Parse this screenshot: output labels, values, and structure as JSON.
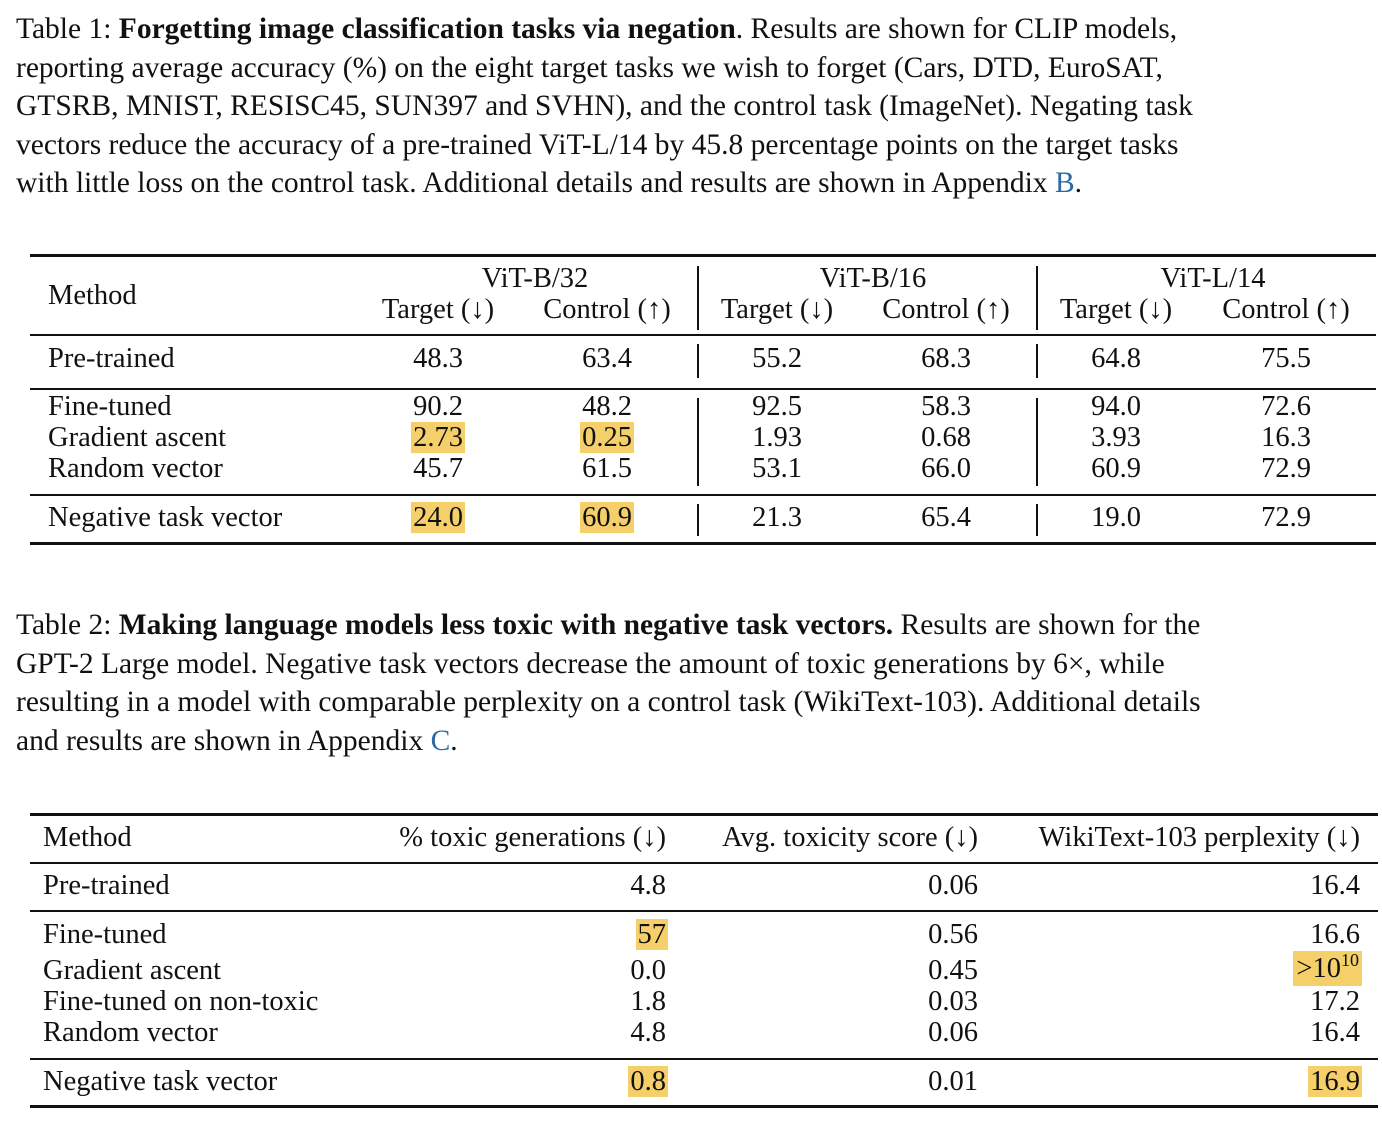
{
  "table1": {
    "caption": {
      "label": "Table 1:",
      "title": "Forgetting image classification tasks via negation",
      "line1_rest": ". Results are shown for CLIP models,",
      "line2": "reporting average accuracy (%) on the eight target tasks we wish to forget (Cars, DTD, EuroSAT,",
      "line3": "GTSRB, MNIST, RESISC45, SUN397 and SVHN), and the control task (ImageNet). Negating task",
      "line4": "vectors reduce the accuracy of a pre-trained ViT-L/14 by 45.8 percentage points on the target tasks",
      "line5_pre": "with little loss on the control task. Additional details and results are shown in Appendix ",
      "line5_link": "B",
      "line5_post": "."
    },
    "method_header": "Method",
    "models": [
      "ViT-B/32",
      "ViT-B/16",
      "ViT-L/14"
    ],
    "sub_headers": {
      "target": "Target (↓)",
      "control": "Control (↑)"
    },
    "rows": [
      {
        "method": "Pre-trained",
        "values": [
          "48.3",
          "63.4",
          "55.2",
          "68.3",
          "64.8",
          "75.5"
        ]
      },
      {
        "method": "Fine-tuned",
        "values": [
          "90.2",
          "48.2",
          "92.5",
          "58.3",
          "94.0",
          "72.6"
        ]
      },
      {
        "method": "Gradient ascent",
        "values": [
          "2.73",
          "0.25",
          "1.93",
          "0.68",
          "3.93",
          "16.3"
        ]
      },
      {
        "method": "Random vector",
        "values": [
          "45.7",
          "61.5",
          "53.1",
          "66.0",
          "60.9",
          "72.9"
        ]
      },
      {
        "method": "Negative task vector",
        "values": [
          "24.0",
          "60.9",
          "21.3",
          "65.4",
          "19.0",
          "72.9"
        ]
      }
    ],
    "highlight_color": "#f5cf6a"
  },
  "table2": {
    "caption": {
      "label": "Table 2:",
      "title": "Making language models less toxic with negative task vectors.",
      "line1_rest": " Results are shown for the",
      "line2": "GPT-2 Large model. Negative task vectors decrease the amount of toxic generations by 6×, while",
      "line3": "resulting in a model with comparable perplexity on a control task (WikiText-103). Additional details",
      "line4_pre": "and results are shown in Appendix ",
      "line4_link": "C",
      "line4_post": "."
    },
    "headers": [
      "Method",
      "% toxic generations (↓)",
      "Avg. toxicity score (↓)",
      "WikiText-103 perplexity (↓)"
    ],
    "rows": [
      {
        "method": "Pre-trained",
        "toxic": "4.8",
        "score": "0.06",
        "ppl": "16.4"
      },
      {
        "method": "Fine-tuned",
        "toxic": "57",
        "score": "0.56",
        "ppl": "16.6"
      },
      {
        "method": "Gradient ascent",
        "toxic": "0.0",
        "score": "0.45",
        "ppl": ">10",
        "ppl_sup": "10"
      },
      {
        "method": "Fine-tuned on non-toxic",
        "toxic": "1.8",
        "score": "0.03",
        "ppl": "17.2"
      },
      {
        "method": "Random vector",
        "toxic": "4.8",
        "score": "0.06",
        "ppl": "16.4"
      },
      {
        "method": "Negative task vector",
        "toxic": "0.8",
        "score": "0.01",
        "ppl": "16.9"
      }
    ]
  }
}
